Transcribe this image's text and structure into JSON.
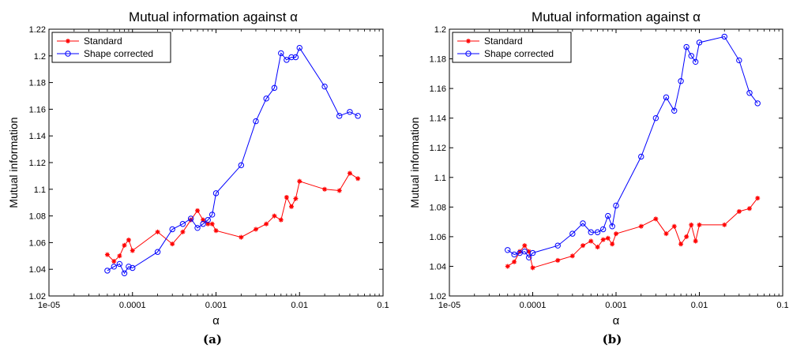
{
  "figure": {
    "caption_a": "(a)",
    "caption_b": "(b)"
  },
  "chart_data": [
    {
      "type": "line",
      "title": "Mutual information against α",
      "xlabel": "α",
      "ylabel": "Mutual information",
      "xscale": "log",
      "xlim": [
        1e-05,
        0.1
      ],
      "ylim": [
        1.02,
        1.22
      ],
      "xticks": [
        1e-05,
        0.0001,
        0.001,
        0.01,
        0.1
      ],
      "xtick_labels": [
        "1e-05",
        "0.0001",
        "0.001",
        "0.01",
        "0.1"
      ],
      "yticks": [
        1.02,
        1.04,
        1.06,
        1.08,
        1.1,
        1.12,
        1.14,
        1.16,
        1.18,
        1.2,
        1.22
      ],
      "ytick_labels": [
        "1.02",
        "1.04",
        "1.06",
        "1.08",
        "1.1",
        "1.12",
        "1.14",
        "1.16",
        "1.18",
        "1.2",
        "1.22"
      ],
      "legend_position": "top-left",
      "series": [
        {
          "name": "Standard",
          "color": "#ff0000",
          "marker": "star",
          "x": [
            5e-05,
            6e-05,
            7e-05,
            8e-05,
            9e-05,
            0.0001,
            0.0002,
            0.0003,
            0.0004,
            0.0005,
            0.0006,
            0.0007,
            0.0008,
            0.0009,
            0.001,
            0.002,
            0.003,
            0.004,
            0.005,
            0.006,
            0.007,
            0.008,
            0.009,
            0.01,
            0.02,
            0.03,
            0.04,
            0.05
          ],
          "y": [
            1.051,
            1.046,
            1.05,
            1.058,
            1.062,
            1.054,
            1.068,
            1.059,
            1.068,
            1.077,
            1.084,
            1.077,
            1.074,
            1.074,
            1.069,
            1.064,
            1.07,
            1.074,
            1.08,
            1.077,
            1.094,
            1.087,
            1.093,
            1.106,
            1.1,
            1.099,
            1.112,
            1.108
          ]
        },
        {
          "name": "Shape corrected",
          "color": "#0000ff",
          "marker": "circle",
          "x": [
            5e-05,
            6e-05,
            7e-05,
            8e-05,
            9e-05,
            0.0001,
            0.0002,
            0.0003,
            0.0004,
            0.0005,
            0.0006,
            0.0007,
            0.0008,
            0.0009,
            0.001,
            0.002,
            0.003,
            0.004,
            0.005,
            0.006,
            0.007,
            0.008,
            0.009,
            0.01,
            0.02,
            0.03,
            0.04,
            0.05
          ],
          "y": [
            1.039,
            1.042,
            1.044,
            1.037,
            1.042,
            1.041,
            1.053,
            1.07,
            1.074,
            1.078,
            1.071,
            1.074,
            1.077,
            1.081,
            1.097,
            1.118,
            1.151,
            1.168,
            1.176,
            1.202,
            1.197,
            1.199,
            1.199,
            1.206,
            1.177,
            1.155,
            1.158,
            1.155
          ]
        }
      ]
    },
    {
      "type": "line",
      "title": "Mutual information against α",
      "xlabel": "α",
      "ylabel": "Mutual information",
      "xscale": "log",
      "xlim": [
        1e-05,
        0.1
      ],
      "ylim": [
        1.02,
        1.2
      ],
      "xticks": [
        1e-05,
        0.0001,
        0.001,
        0.01,
        0.1
      ],
      "xtick_labels": [
        "1e-05",
        "0.0001",
        "0.001",
        "0.01",
        "0.1"
      ],
      "yticks": [
        1.02,
        1.04,
        1.06,
        1.08,
        1.1,
        1.12,
        1.14,
        1.16,
        1.18,
        1.2
      ],
      "ytick_labels": [
        "1.02",
        "1.04",
        "1.06",
        "1.08",
        "1.1",
        "1.12",
        "1.14",
        "1.16",
        "1.18",
        "1.2"
      ],
      "legend_position": "top-left",
      "series": [
        {
          "name": "Standard",
          "color": "#ff0000",
          "marker": "star",
          "x": [
            5e-05,
            6e-05,
            7e-05,
            8e-05,
            9e-05,
            0.0001,
            0.0002,
            0.0003,
            0.0004,
            0.0005,
            0.0006,
            0.0007,
            0.0008,
            0.0009,
            0.001,
            0.002,
            0.003,
            0.004,
            0.005,
            0.006,
            0.007,
            0.008,
            0.009,
            0.01,
            0.02,
            0.03,
            0.04,
            0.05
          ],
          "y": [
            1.04,
            1.043,
            1.05,
            1.054,
            1.05,
            1.039,
            1.044,
            1.047,
            1.054,
            1.057,
            1.053,
            1.058,
            1.059,
            1.055,
            1.062,
            1.067,
            1.072,
            1.062,
            1.067,
            1.055,
            1.06,
            1.068,
            1.057,
            1.068,
            1.068,
            1.077,
            1.079,
            1.086
          ]
        },
        {
          "name": "Shape corrected",
          "color": "#0000ff",
          "marker": "circle",
          "x": [
            5e-05,
            6e-05,
            7e-05,
            8e-05,
            9e-05,
            0.0001,
            0.0002,
            0.0003,
            0.0004,
            0.0005,
            0.0006,
            0.0007,
            0.0008,
            0.0009,
            0.001,
            0.002,
            0.003,
            0.004,
            0.005,
            0.006,
            0.007,
            0.008,
            0.009,
            0.01,
            0.02,
            0.03,
            0.04,
            0.05
          ],
          "y": [
            1.051,
            1.048,
            1.049,
            1.05,
            1.046,
            1.049,
            1.054,
            1.062,
            1.069,
            1.063,
            1.063,
            1.065,
            1.074,
            1.067,
            1.081,
            1.114,
            1.14,
            1.154,
            1.145,
            1.165,
            1.188,
            1.182,
            1.178,
            1.191,
            1.195,
            1.179,
            1.157,
            1.15
          ]
        }
      ]
    }
  ]
}
